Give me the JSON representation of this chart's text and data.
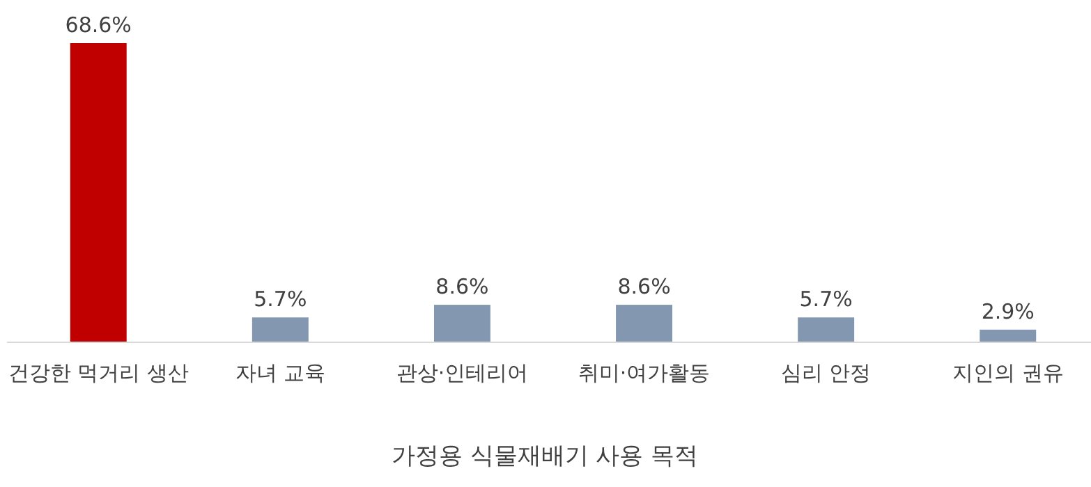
{
  "chart_data": {
    "type": "bar",
    "xlabel": "가정용 식물재배기 사용 목적",
    "categories": [
      "건강한 먹거리 생산",
      "자녀 교육",
      "관상·인테리어",
      "취미·여가활동",
      "심리 안정",
      "지인의 권유"
    ],
    "values": [
      68.6,
      5.7,
      8.6,
      8.6,
      5.7,
      2.9
    ],
    "colors": [
      "#c00000",
      "#8497b0",
      "#8497b0",
      "#8497b0",
      "#8497b0",
      "#8497b0"
    ],
    "value_labels": [
      "68.6%",
      "5.7%",
      "8.6%",
      "8.6%",
      "5.7%",
      "2.9%"
    ]
  }
}
